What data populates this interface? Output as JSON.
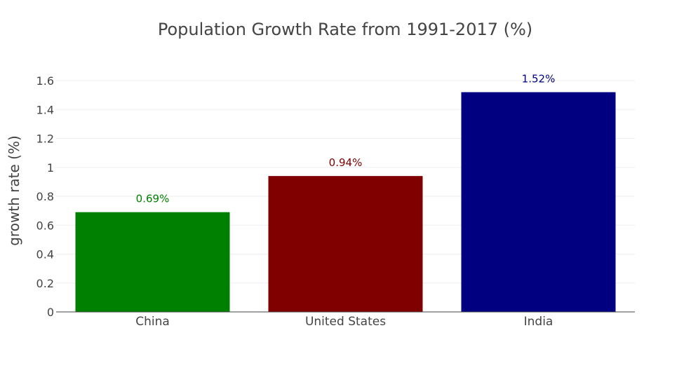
{
  "chart_data": {
    "type": "bar",
    "title": "Population Growth Rate from 1991-2017 (%)",
    "xlabel": "",
    "ylabel": "growth rate (%)",
    "categories": [
      "China",
      "United States",
      "India"
    ],
    "values": [
      0.69,
      0.94,
      1.52
    ],
    "data_labels": [
      "0.69%",
      "0.94%",
      "1.52%"
    ],
    "colors": [
      "#008000",
      "#800000",
      "#000080"
    ],
    "ylim": [
      0,
      1.6
    ],
    "yticks": [
      0,
      0.2,
      0.4,
      0.6,
      0.8,
      1,
      1.2,
      1.4,
      1.6
    ],
    "ytick_labels": [
      "0",
      "0.2",
      "0.4",
      "0.6",
      "0.8",
      "1",
      "1.2",
      "1.4",
      "1.6"
    ],
    "grid": true,
    "legend": "none"
  }
}
